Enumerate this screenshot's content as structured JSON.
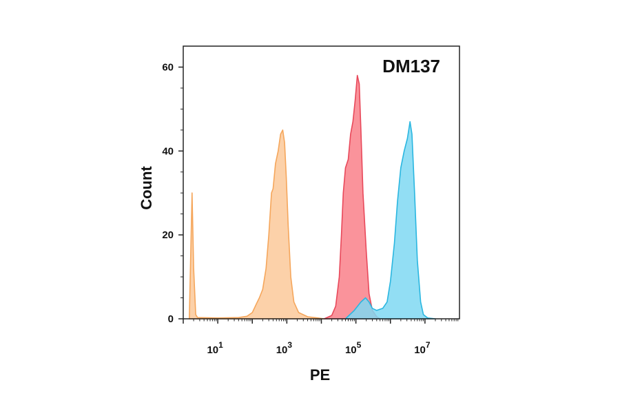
{
  "chart_data": {
    "type": "area",
    "title": "DM137",
    "xlabel": "PE",
    "ylabel": "Count",
    "x_scale": "log10",
    "xlim": [
      1,
      100000000
    ],
    "ylim": [
      0,
      65
    ],
    "x_ticks": [
      {
        "value": 10,
        "base": "10",
        "exp": "1"
      },
      {
        "value": 1000,
        "base": "10",
        "exp": "3"
      },
      {
        "value": 100000,
        "base": "10",
        "exp": "5"
      },
      {
        "value": 10000000,
        "base": "10",
        "exp": "7"
      }
    ],
    "y_ticks": [
      {
        "value": 0,
        "label": "0"
      },
      {
        "value": 20,
        "label": "20"
      },
      {
        "value": 40,
        "label": "40"
      },
      {
        "value": 60,
        "label": "60"
      }
    ],
    "grid": false,
    "series": [
      {
        "color": "#f5a65b",
        "fill": "#fbc99a",
        "points": [
          [
            1.5,
            0
          ],
          [
            1.8,
            30
          ],
          [
            2.0,
            12
          ],
          [
            2.3,
            1
          ],
          [
            2.6,
            0.3
          ],
          [
            10,
            0.2
          ],
          [
            40,
            0.3
          ],
          [
            70,
            0.6
          ],
          [
            100,
            1.5
          ],
          [
            130,
            3.5
          ],
          [
            160,
            5
          ],
          [
            200,
            7
          ],
          [
            250,
            12
          ],
          [
            300,
            20
          ],
          [
            360,
            30
          ],
          [
            400,
            31
          ],
          [
            470,
            37
          ],
          [
            560,
            40
          ],
          [
            660,
            44
          ],
          [
            760,
            45
          ],
          [
            860,
            42
          ],
          [
            960,
            34
          ],
          [
            1100,
            22
          ],
          [
            1300,
            10
          ],
          [
            1600,
            4
          ],
          [
            2200,
            1.5
          ],
          [
            4000,
            0.5
          ],
          [
            8000,
            0.2
          ],
          [
            12000,
            0
          ]
        ]
      },
      {
        "color": "#e8485a",
        "fill": "#f9808a",
        "points": [
          [
            12000,
            0
          ],
          [
            20000,
            0.8
          ],
          [
            26000,
            3
          ],
          [
            33000,
            10
          ],
          [
            38000,
            20
          ],
          [
            43000,
            30
          ],
          [
            50000,
            36
          ],
          [
            60000,
            38
          ],
          [
            70000,
            44
          ],
          [
            82000,
            47
          ],
          [
            95000,
            52
          ],
          [
            110000,
            58
          ],
          [
            125000,
            56
          ],
          [
            140000,
            45
          ],
          [
            160000,
            30
          ],
          [
            200000,
            16
          ],
          [
            240000,
            6
          ],
          [
            300000,
            2
          ],
          [
            400000,
            0.5
          ],
          [
            500000,
            0
          ]
        ]
      },
      {
        "color": "#29b6e0",
        "fill": "#7fd8f2",
        "points": [
          [
            50000,
            0
          ],
          [
            90000,
            2
          ],
          [
            140000,
            4
          ],
          [
            190000,
            5
          ],
          [
            240000,
            4
          ],
          [
            300000,
            2.5
          ],
          [
            400000,
            2
          ],
          [
            600000,
            2.5
          ],
          [
            800000,
            4
          ],
          [
            1000000,
            9
          ],
          [
            1300000,
            18
          ],
          [
            1600000,
            28
          ],
          [
            2000000,
            36
          ],
          [
            2500000,
            40
          ],
          [
            3100000,
            43
          ],
          [
            3700000,
            47
          ],
          [
            4200000,
            44
          ],
          [
            5000000,
            30
          ],
          [
            6000000,
            14
          ],
          [
            7500000,
            4
          ],
          [
            9000000,
            1
          ],
          [
            12000000,
            0.2
          ],
          [
            20000000,
            0
          ]
        ]
      }
    ]
  }
}
